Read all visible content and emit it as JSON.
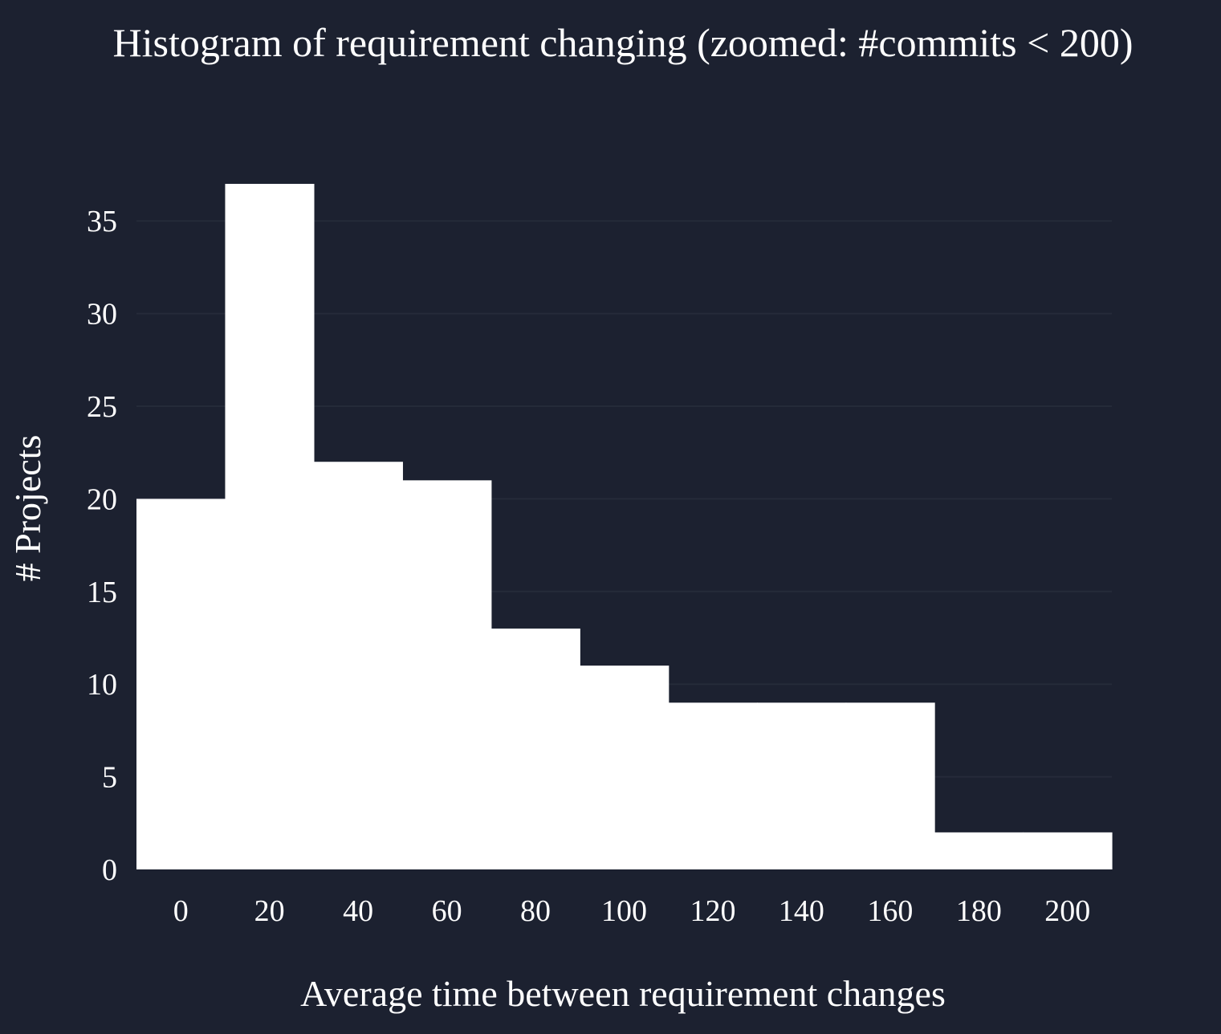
{
  "chart_data": {
    "type": "bar",
    "title": "Histogram of requirement changing (zoomed: #commits < 200)",
    "xlabel": "Average time between requirement changes",
    "ylabel": "# Projects",
    "bins": [
      {
        "start": -10,
        "end": 10,
        "count": 20
      },
      {
        "start": 10,
        "end": 30,
        "count": 37
      },
      {
        "start": 30,
        "end": 50,
        "count": 22
      },
      {
        "start": 50,
        "end": 70,
        "count": 21
      },
      {
        "start": 70,
        "end": 90,
        "count": 13
      },
      {
        "start": 90,
        "end": 110,
        "count": 11
      },
      {
        "start": 110,
        "end": 130,
        "count": 9
      },
      {
        "start": 130,
        "end": 150,
        "count": 9
      },
      {
        "start": 150,
        "end": 170,
        "count": 9
      },
      {
        "start": 170,
        "end": 190,
        "count": 2
      },
      {
        "start": 190,
        "end": 210,
        "count": 2
      }
    ],
    "xlim": [
      -10,
      210
    ],
    "ylim": [
      0,
      37
    ],
    "x_ticks": [
      0,
      20,
      40,
      60,
      80,
      100,
      120,
      140,
      160,
      180,
      200
    ],
    "y_ticks": [
      0,
      5,
      10,
      15,
      20,
      25,
      30,
      35
    ],
    "grid": "horizontal",
    "colors": {
      "background": "#1c2130",
      "bar": "#ffffff",
      "text": "#ffffff",
      "grid": "#252b39"
    }
  }
}
